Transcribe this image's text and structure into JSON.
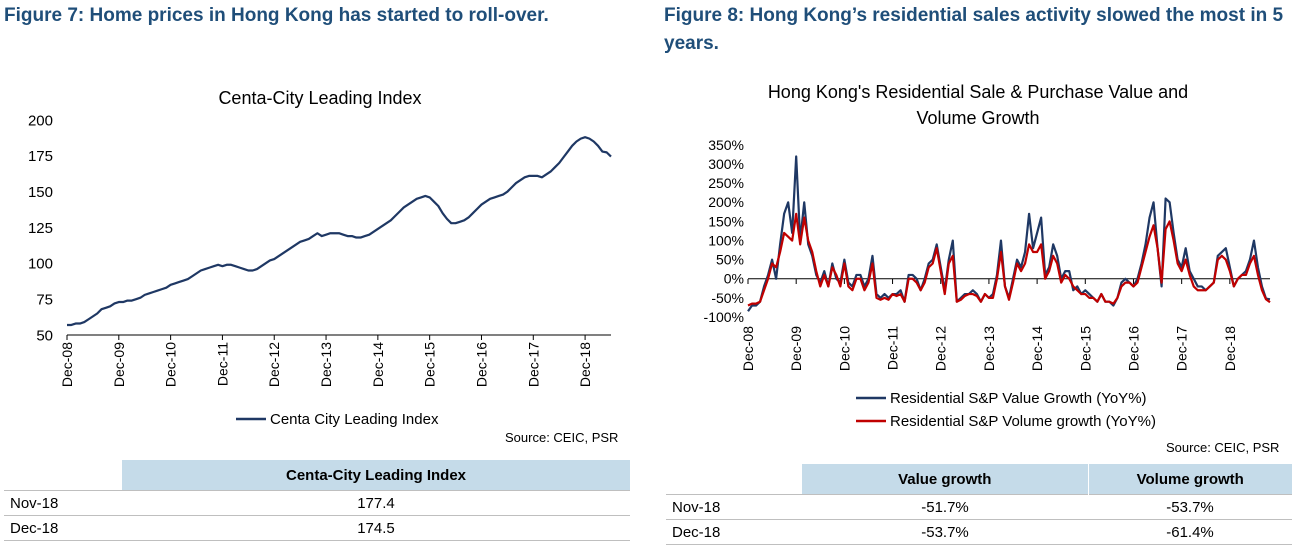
{
  "figures": {
    "left_title": "Figure 7: Home prices in Hong Kong has started to roll-over.",
    "right_title": "Figure 8: Hong Kong’s residential sales activity slowed the most in 5 years."
  },
  "chart_data": [
    {
      "type": "line",
      "title": "Centa-City Leading Index",
      "xlabel": "",
      "ylabel": "",
      "ylim": [
        50,
        200
      ],
      "yticks": [
        "50",
        "75",
        "100",
        "125",
        "150",
        "175",
        "200"
      ],
      "xticks": [
        "Dec-08",
        "Dec-09",
        "Dec-10",
        "Dec-11",
        "Dec-12",
        "Dec-13",
        "Dec-14",
        "Dec-15",
        "Dec-16",
        "Dec-17",
        "Dec-18"
      ],
      "grid": false,
      "legend_placement": "bottom",
      "series": [
        {
          "name": "Centa City Leading Index",
          "color": "#1f3864",
          "values": [
            57,
            57,
            58,
            58,
            59,
            61,
            63,
            65,
            68,
            69,
            70,
            72,
            73,
            73,
            74,
            74,
            75,
            76,
            78,
            79,
            80,
            81,
            82,
            83,
            85,
            86,
            87,
            88,
            89,
            91,
            93,
            95,
            96,
            97,
            98,
            99,
            98,
            99,
            99,
            98,
            97,
            96,
            95,
            95,
            96,
            98,
            100,
            102,
            103,
            105,
            107,
            109,
            111,
            113,
            115,
            116,
            117,
            119,
            121,
            119,
            120,
            121,
            121,
            121,
            120,
            119,
            119,
            118,
            118,
            119,
            120,
            122,
            124,
            126,
            128,
            130,
            133,
            136,
            139,
            141,
            143,
            145,
            146,
            147,
            146,
            143,
            140,
            135,
            131,
            128,
            128,
            129,
            130,
            132,
            135,
            138,
            141,
            143,
            145,
            146,
            147,
            148,
            150,
            153,
            156,
            158,
            160,
            161,
            161,
            161,
            160,
            162,
            164,
            167,
            170,
            174,
            178,
            182,
            185,
            187,
            188,
            187,
            185,
            182,
            178,
            177.4,
            174.5
          ]
        }
      ],
      "source": "Source: CEIC, PSR"
    },
    {
      "type": "line",
      "title": "Hong Kong's Residential Sale & Purchase Value and Volume Growth",
      "xlabel": "",
      "ylabel": "",
      "ylim": [
        -100,
        350
      ],
      "yticks": [
        "-100%",
        "-50%",
        "0%",
        "50%",
        "100%",
        "150%",
        "200%",
        "250%",
        "300%",
        "350%"
      ],
      "xticks": [
        "Dec-08",
        "Dec-09",
        "Dec-10",
        "Dec-11",
        "Dec-12",
        "Dec-13",
        "Dec-14",
        "Dec-15",
        "Dec-16",
        "Dec-17",
        "Dec-18"
      ],
      "grid": false,
      "legend_placement": "bottom",
      "series": [
        {
          "name": "Residential S&P Value Growth (YoY%)",
          "color": "#1f3864",
          "values": [
            -85,
            -70,
            -70,
            -60,
            -20,
            10,
            50,
            0,
            90,
            170,
            200,
            120,
            320,
            100,
            200,
            90,
            60,
            10,
            -10,
            20,
            -20,
            40,
            0,
            -10,
            50,
            -10,
            -20,
            10,
            10,
            -20,
            0,
            60,
            -40,
            -50,
            -40,
            -50,
            -40,
            -40,
            -30,
            -60,
            10,
            10,
            0,
            -30,
            0,
            40,
            50,
            90,
            30,
            -30,
            50,
            100,
            -60,
            -50,
            -40,
            -40,
            -30,
            -40,
            -60,
            -40,
            -50,
            -40,
            10,
            100,
            -20,
            -50,
            0,
            50,
            30,
            70,
            170,
            80,
            120,
            160,
            10,
            30,
            90,
            60,
            0,
            20,
            20,
            -30,
            -20,
            -40,
            -30,
            -40,
            -50,
            -60,
            -40,
            -60,
            -60,
            -70,
            -50,
            -10,
            0,
            -10,
            -20,
            0,
            40,
            90,
            160,
            200,
            80,
            -20,
            210,
            200,
            120,
            50,
            30,
            80,
            20,
            0,
            -20,
            -20,
            -30,
            -20,
            -10,
            60,
            70,
            80,
            30,
            -20,
            0,
            10,
            20,
            50,
            100,
            30,
            -20,
            -51.7,
            -53.7
          ]
        },
        {
          "name": "Residential S&P Volume growth (YoY%)",
          "color": "#c00000",
          "values": [
            -70,
            -65,
            -65,
            -60,
            -30,
            0,
            40,
            30,
            70,
            120,
            110,
            100,
            170,
            90,
            160,
            100,
            70,
            20,
            -20,
            10,
            -20,
            30,
            10,
            -20,
            40,
            -20,
            -30,
            0,
            0,
            -30,
            -10,
            40,
            -50,
            -55,
            -50,
            -55,
            -40,
            -45,
            -40,
            -60,
            0,
            0,
            -10,
            -30,
            -10,
            30,
            40,
            80,
            20,
            -40,
            40,
            60,
            -60,
            -55,
            -45,
            -40,
            -40,
            -45,
            -60,
            -40,
            -50,
            -50,
            0,
            70,
            -20,
            -55,
            -10,
            40,
            20,
            40,
            90,
            70,
            70,
            90,
            0,
            20,
            60,
            40,
            -10,
            10,
            0,
            -20,
            -30,
            -40,
            -40,
            -50,
            -50,
            -60,
            -40,
            -60,
            -60,
            -65,
            -50,
            -20,
            -10,
            -10,
            -20,
            -10,
            30,
            70,
            110,
            140,
            80,
            -10,
            130,
            150,
            100,
            40,
            20,
            50,
            10,
            -20,
            -30,
            -30,
            -30,
            -20,
            -10,
            50,
            60,
            50,
            20,
            -20,
            0,
            10,
            10,
            40,
            60,
            10,
            -30,
            -53.7,
            -61.4
          ]
        }
      ],
      "source": "Source: CEIC, PSR"
    }
  ],
  "left_table": {
    "header": "Centa-City Leading Index",
    "rows": [
      {
        "label": "Nov-18",
        "value": "177.4"
      },
      {
        "label": "Dec-18",
        "value": "174.5"
      }
    ]
  },
  "right_table": {
    "headers": [
      "Value growth",
      "Volume growth"
    ],
    "rows": [
      {
        "label": "Nov-18",
        "value": "-51.7%",
        "volume": "-53.7%"
      },
      {
        "label": "Dec-18",
        "value": "-53.7%",
        "volume": "-61.4%"
      }
    ]
  }
}
